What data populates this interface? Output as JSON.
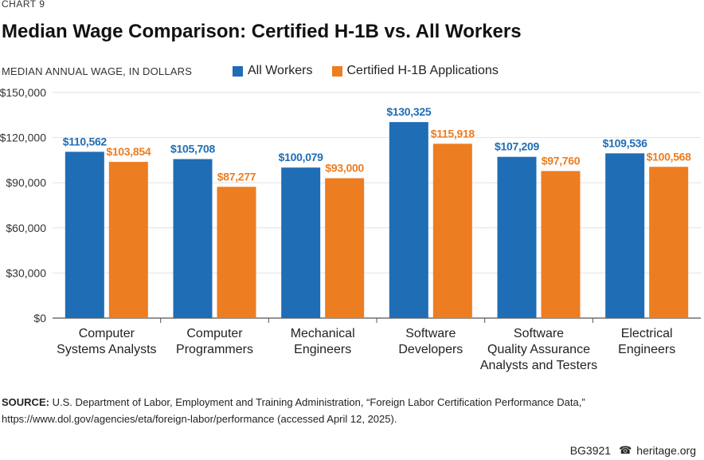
{
  "header": {
    "kicker": "CHART 9",
    "title": "Median Wage Comparison: Certified H-1B vs. All Workers",
    "axis_caption": "MEDIAN ANNUAL WAGE, IN DOLLARS"
  },
  "colors": {
    "all_workers": "#1f6db5",
    "h1b": "#ed7d21",
    "grid": "#e2e2e2",
    "axis": "#555555"
  },
  "chart_data": {
    "type": "bar",
    "title": "Median Wage Comparison: Certified H-1B vs. All Workers",
    "ylabel": "MEDIAN ANNUAL WAGE, IN DOLLARS",
    "xlabel": "",
    "ylim": [
      0,
      150000
    ],
    "yticks": [
      0,
      30000,
      60000,
      90000,
      120000,
      150000
    ],
    "ytick_labels": [
      "$0",
      "$30,000",
      "$60,000",
      "$90,000",
      "$120,000",
      "$150,000"
    ],
    "legend_position": "top",
    "grid": true,
    "categories": [
      [
        "Computer",
        "Systems Analysts"
      ],
      [
        "Computer",
        "Programmers"
      ],
      [
        "Mechanical",
        "Engineers"
      ],
      [
        "Software",
        "Developers"
      ],
      [
        "Software",
        "Quality Assurance",
        "Analysts and Testers"
      ],
      [
        "Electrical",
        "Engineers"
      ]
    ],
    "series": [
      {
        "name": "All Workers",
        "values": [
          110562,
          105708,
          100079,
          130325,
          107209,
          109536
        ],
        "labels": [
          "$110,562",
          "$105,708",
          "$100,079",
          "$130,325",
          "$107,209",
          "$109,536"
        ]
      },
      {
        "name": "Certified H-1B Applications",
        "values": [
          103854,
          87277,
          93000,
          115918,
          97760,
          100568
        ],
        "labels": [
          "$103,854",
          "$87,277",
          "$93,000",
          "$115,918",
          "$97,760",
          "$100,568"
        ]
      }
    ]
  },
  "source": {
    "label": "SOURCE:",
    "text": " U.S. Department of Labor, Employment and Training Administration, “Foreign Labor Certification Performance Data,” https://www.dol.gov/agencies/eta/foreign-labor/performance (accessed April 12, 2025)."
  },
  "footer": {
    "code": "BG3921",
    "site": "heritage.org",
    "logo_icon": "liberty-bell-icon"
  }
}
